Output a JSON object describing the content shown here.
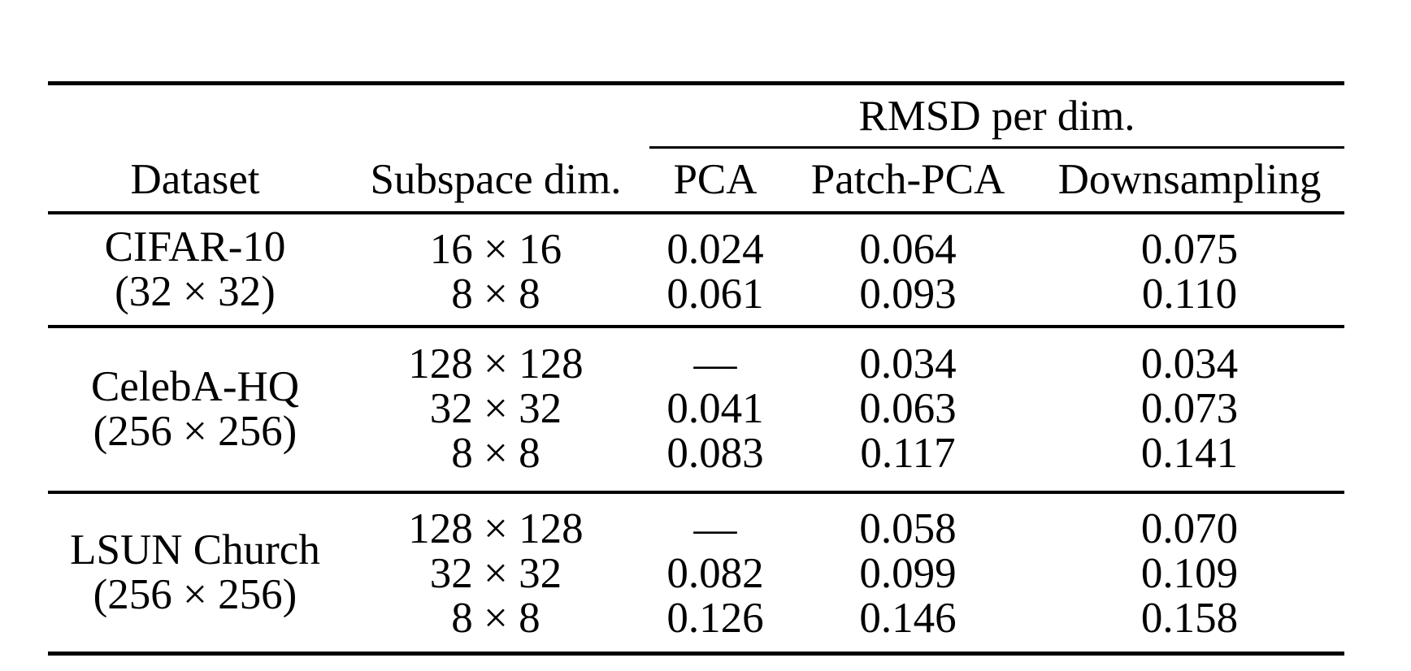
{
  "table": {
    "span_header": "RMSD per dim.",
    "columns": {
      "dataset": "Dataset",
      "subspace": "Subspace dim.",
      "pca": "PCA",
      "patch_pca": "Patch-PCA",
      "downsampling": "Downsampling"
    },
    "groups": [
      {
        "dataset": {
          "name": "CIFAR-10",
          "size": "(32 × 32)"
        },
        "rows": [
          {
            "subspace_dim": "16 × 16",
            "pca": "0.024",
            "patch_pca": "0.064",
            "downsampling": "0.075"
          },
          {
            "subspace_dim": "8 × 8",
            "pca": "0.061",
            "patch_pca": "0.093",
            "downsampling": "0.110"
          }
        ]
      },
      {
        "dataset": {
          "name": "CelebA-HQ",
          "size": "(256 × 256)"
        },
        "rows": [
          {
            "subspace_dim": "128 × 128",
            "pca": "—",
            "patch_pca": "0.034",
            "downsampling": "0.034"
          },
          {
            "subspace_dim": "32 × 32",
            "pca": "0.041",
            "patch_pca": "0.063",
            "downsampling": "0.073"
          },
          {
            "subspace_dim": "8 × 8",
            "pca": "0.083",
            "patch_pca": "0.117",
            "downsampling": "0.141"
          }
        ]
      },
      {
        "dataset": {
          "name": "LSUN Church",
          "size": "(256 × 256)"
        },
        "rows": [
          {
            "subspace_dim": "128 × 128",
            "pca": "—",
            "patch_pca": "0.058",
            "downsampling": "0.070"
          },
          {
            "subspace_dim": "32 × 32",
            "pca": "0.082",
            "patch_pca": "0.099",
            "downsampling": "0.109"
          },
          {
            "subspace_dim": "8 × 8",
            "pca": "0.126",
            "patch_pca": "0.146",
            "downsampling": "0.158"
          }
        ]
      }
    ],
    "colors": {
      "text": "#000000",
      "rule": "#000000",
      "background": "#ffffff"
    }
  },
  "chart_data": {
    "type": "table",
    "title": "RMSD per dim.",
    "column_headers": [
      "Dataset",
      "Subspace dim.",
      "PCA",
      "Patch-PCA",
      "Downsampling"
    ],
    "rows": [
      [
        "CIFAR-10 (32 × 32)",
        "16 × 16",
        "0.024",
        "0.064",
        "0.075"
      ],
      [
        "CIFAR-10 (32 × 32)",
        "8 × 8",
        "0.061",
        "0.093",
        "0.110"
      ],
      [
        "CelebA-HQ (256 × 256)",
        "128 × 128",
        "—",
        "0.034",
        "0.034"
      ],
      [
        "CelebA-HQ (256 × 256)",
        "32 × 32",
        "0.041",
        "0.063",
        "0.073"
      ],
      [
        "CelebA-HQ (256 × 256)",
        "8 × 8",
        "0.083",
        "0.117",
        "0.141"
      ],
      [
        "LSUN Church (256 × 256)",
        "128 × 128",
        "—",
        "0.058",
        "0.070"
      ],
      [
        "LSUN Church (256 × 256)",
        "32 × 32",
        "0.082",
        "0.099",
        "0.109"
      ],
      [
        "LSUN Church (256 × 256)",
        "8 × 8",
        "0.126",
        "0.146",
        "0.158"
      ]
    ]
  }
}
